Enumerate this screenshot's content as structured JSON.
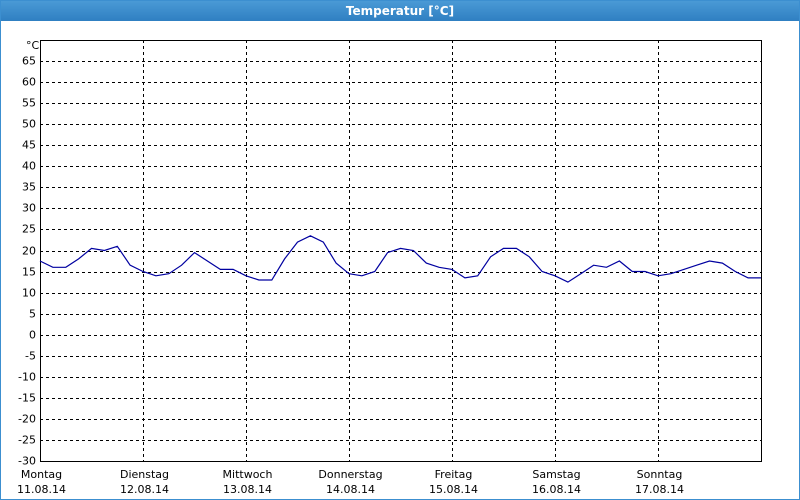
{
  "chart_data": {
    "type": "line",
    "title": "Temperatur [°C]",
    "y_unit": "°C",
    "x": [
      0,
      3,
      6,
      9,
      12,
      15,
      18,
      21,
      24,
      27,
      30,
      33,
      36,
      39,
      42,
      45,
      48,
      51,
      54,
      57,
      60,
      63,
      66,
      69,
      72,
      75,
      78,
      81,
      84,
      87,
      90,
      93,
      96,
      99,
      102,
      105,
      108,
      111,
      114,
      117,
      120,
      123,
      126,
      129,
      132,
      135,
      138,
      141,
      144,
      147,
      150,
      153,
      156,
      159,
      162,
      165,
      168
    ],
    "values": [
      17.5,
      16,
      16,
      18,
      20.5,
      20,
      21,
      16.5,
      15,
      14,
      14.5,
      16.5,
      19.5,
      17.5,
      15.5,
      15.5,
      14,
      13,
      13,
      18,
      22,
      23.5,
      22,
      17,
      14.5,
      14,
      15,
      19.5,
      20.5,
      20,
      17,
      16,
      15.5,
      13.5,
      14,
      18.5,
      20.5,
      20.5,
      18.5,
      15,
      14,
      12.5,
      14.5,
      16.5,
      16,
      17.5,
      15,
      15,
      14,
      14.5,
      15.5,
      16.5,
      17.5,
      17,
      15,
      13.5,
      13.5
    ],
    "color": "#0000a0",
    "xlim": [
      0,
      168
    ],
    "xticks": [
      {
        "value": 0,
        "label": "Montag",
        "date": "11.08.14"
      },
      {
        "value": 24,
        "label": "Dienstag",
        "date": "12.08.14"
      },
      {
        "value": 48,
        "label": "Mittwoch",
        "date": "13.08.14"
      },
      {
        "value": 72,
        "label": "Donnerstag",
        "date": "14.08.14"
      },
      {
        "value": 96,
        "label": "Freitag",
        "date": "15.08.14"
      },
      {
        "value": 120,
        "label": "Samstag",
        "date": "16.08.14"
      },
      {
        "value": 144,
        "label": "Sonntag",
        "date": "17.08.14"
      }
    ],
    "ylim": [
      -30,
      70
    ],
    "yticks": [
      -30,
      -25,
      -20,
      -15,
      -10,
      -5,
      0,
      5,
      10,
      15,
      20,
      25,
      30,
      35,
      40,
      45,
      50,
      55,
      60,
      65
    ],
    "grid": true
  }
}
